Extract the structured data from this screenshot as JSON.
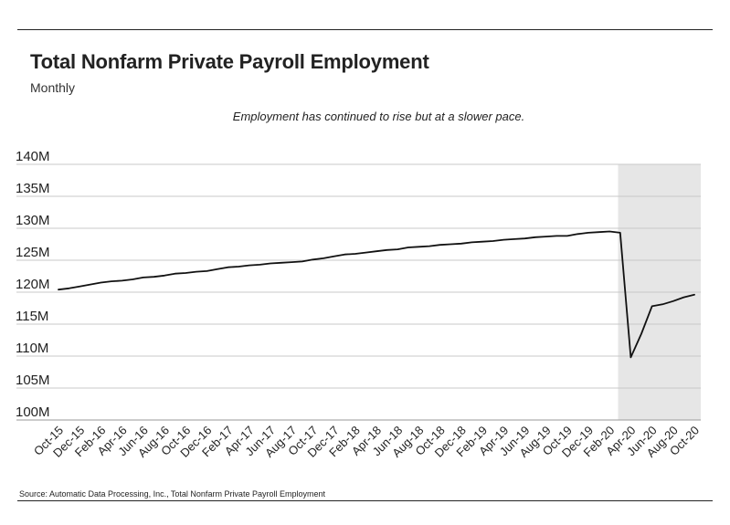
{
  "header": {
    "title": "Total Nonfarm Private Payroll Employment",
    "subtitle": "Monthly",
    "annotation": "Employment has continued to rise but at a slower pace."
  },
  "footer": {
    "source": "Source:  Automatic Data Processing, Inc., Total Nonfarm Private Payroll Employment"
  },
  "colors": {
    "line": "#111111",
    "grid": "#c8c8c8",
    "shade": "#e6e6e6",
    "text": "#222222"
  },
  "chart_data": {
    "type": "line",
    "title": "Total Nonfarm Private Payroll Employment",
    "subtitle": "Monthly",
    "xlabel": "",
    "ylabel": "",
    "ylim": [
      100,
      140
    ],
    "yticks": [
      100,
      105,
      110,
      115,
      120,
      125,
      130,
      135,
      140
    ],
    "ytick_labels": [
      "100M",
      "105M",
      "110M",
      "115M",
      "120M",
      "125M",
      "130M",
      "135M",
      "140M"
    ],
    "grid": true,
    "legend": "none",
    "shaded_region": {
      "start": "Mar-20",
      "end": "Oct-20"
    },
    "xtick_labels": [
      "Oct-15",
      "Dec-15",
      "Feb-16",
      "Apr-16",
      "Jun-16",
      "Aug-16",
      "Oct-16",
      "Dec-16",
      "Feb-17",
      "Apr-17",
      "Jun-17",
      "Aug-17",
      "Oct-17",
      "Dec-17",
      "Feb-18",
      "Apr-18",
      "Jun-18",
      "Aug-18",
      "Oct-18",
      "Dec-18",
      "Feb-19",
      "Apr-19",
      "Jun-19",
      "Aug-19",
      "Oct-19",
      "Dec-19",
      "Feb-20",
      "Apr-20",
      "Jun-20",
      "Aug-20",
      "Oct-20"
    ],
    "x": [
      "Oct-15",
      "Nov-15",
      "Dec-15",
      "Jan-16",
      "Feb-16",
      "Mar-16",
      "Apr-16",
      "May-16",
      "Jun-16",
      "Jul-16",
      "Aug-16",
      "Sep-16",
      "Oct-16",
      "Nov-16",
      "Dec-16",
      "Jan-17",
      "Feb-17",
      "Mar-17",
      "Apr-17",
      "May-17",
      "Jun-17",
      "Jul-17",
      "Aug-17",
      "Sep-17",
      "Oct-17",
      "Nov-17",
      "Dec-17",
      "Jan-18",
      "Feb-18",
      "Mar-18",
      "Apr-18",
      "May-18",
      "Jun-18",
      "Jul-18",
      "Aug-18",
      "Sep-18",
      "Oct-18",
      "Nov-18",
      "Dec-18",
      "Jan-19",
      "Feb-19",
      "Mar-19",
      "Apr-19",
      "May-19",
      "Jun-19",
      "Jul-19",
      "Aug-19",
      "Sep-19",
      "Oct-19",
      "Nov-19",
      "Dec-19",
      "Jan-20",
      "Feb-20",
      "Mar-20",
      "Apr-20",
      "May-20",
      "Jun-20",
      "Jul-20",
      "Aug-20",
      "Sep-20",
      "Oct-20"
    ],
    "series": [
      {
        "values": [
          120.4,
          120.6,
          120.9,
          121.2,
          121.5,
          121.7,
          121.8,
          122.0,
          122.3,
          122.4,
          122.6,
          122.9,
          123.0,
          123.2,
          123.3,
          123.6,
          123.9,
          124.0,
          124.2,
          124.3,
          124.5,
          124.6,
          124.7,
          124.8,
          125.1,
          125.3,
          125.6,
          125.9,
          126.0,
          126.2,
          126.4,
          126.6,
          126.7,
          127.0,
          127.1,
          127.2,
          127.4,
          127.5,
          127.6,
          127.8,
          127.9,
          128.0,
          128.2,
          128.3,
          128.4,
          128.6,
          128.7,
          128.8,
          128.8,
          129.1,
          129.3,
          129.4,
          129.5,
          129.3,
          109.8,
          113.5,
          117.8,
          118.1,
          118.6,
          119.2,
          119.6
        ]
      }
    ]
  }
}
